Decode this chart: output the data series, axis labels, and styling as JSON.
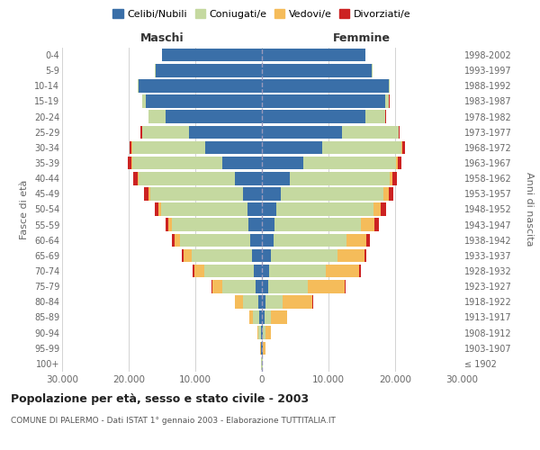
{
  "age_groups": [
    "100+",
    "95-99",
    "90-94",
    "85-89",
    "80-84",
    "75-79",
    "70-74",
    "65-69",
    "60-64",
    "55-59",
    "50-54",
    "45-49",
    "40-44",
    "35-39",
    "30-34",
    "25-29",
    "20-24",
    "15-19",
    "10-14",
    "5-9",
    "0-4"
  ],
  "birth_years": [
    "≤ 1902",
    "1903-1907",
    "1908-1912",
    "1913-1917",
    "1918-1922",
    "1923-1927",
    "1928-1932",
    "1933-1937",
    "1938-1942",
    "1943-1947",
    "1948-1952",
    "1953-1957",
    "1958-1962",
    "1963-1967",
    "1968-1972",
    "1973-1977",
    "1978-1982",
    "1983-1987",
    "1988-1992",
    "1993-1997",
    "1998-2002"
  ],
  "colors": {
    "celibi": "#3a6fa8",
    "coniugati": "#c5d9a0",
    "vedovi": "#f5bc5a",
    "divorziati": "#cc2222"
  },
  "males": {
    "celibi": [
      50,
      100,
      200,
      400,
      600,
      900,
      1200,
      1500,
      1800,
      2000,
      2200,
      2800,
      4000,
      6000,
      8500,
      11000,
      14500,
      17500,
      18500,
      16000,
      15000
    ],
    "coniugati": [
      50,
      100,
      300,
      900,
      2200,
      5000,
      7500,
      9000,
      10500,
      11500,
      13000,
      14000,
      14500,
      13500,
      11000,
      7000,
      2500,
      500,
      100,
      50,
      20
    ],
    "vedovi": [
      30,
      100,
      200,
      600,
      1200,
      1500,
      1500,
      1200,
      800,
      500,
      300,
      200,
      100,
      50,
      30,
      20,
      10,
      5,
      2,
      1,
      1
    ],
    "divorziati": [
      5,
      10,
      20,
      50,
      80,
      150,
      250,
      350,
      450,
      500,
      600,
      700,
      700,
      600,
      400,
      200,
      80,
      20,
      5,
      2,
      1
    ]
  },
  "females": {
    "celibi": [
      50,
      100,
      200,
      400,
      600,
      900,
      1100,
      1400,
      1700,
      1900,
      2200,
      2800,
      4200,
      6200,
      9000,
      12000,
      15500,
      18500,
      19000,
      16500,
      15500
    ],
    "coniugati": [
      30,
      80,
      300,
      900,
      2500,
      6000,
      8500,
      10000,
      11000,
      13000,
      14500,
      15500,
      15000,
      14000,
      12000,
      8500,
      3000,
      600,
      150,
      60,
      20
    ],
    "vedovi": [
      80,
      300,
      800,
      2500,
      4500,
      5500,
      5000,
      4000,
      3000,
      2000,
      1200,
      700,
      350,
      150,
      60,
      20,
      10,
      5,
      2,
      1,
      1
    ],
    "divorziati": [
      3,
      8,
      15,
      40,
      80,
      150,
      200,
      300,
      450,
      600,
      700,
      700,
      700,
      600,
      400,
      200,
      80,
      20,
      5,
      2,
      1
    ]
  },
  "xlim": 30000,
  "xticks": [
    -30000,
    -20000,
    -10000,
    0,
    10000,
    20000,
    30000
  ],
  "xticklabels": [
    "30.000",
    "20.000",
    "10.000",
    "0",
    "10.000",
    "20.000",
    "30.000"
  ],
  "title": "Popolazione per età, sesso e stato civile - 2003",
  "subtitle": "COMUNE DI PALERMO - Dati ISTAT 1° gennaio 2003 - Elaborazione TUTTITALIA.IT",
  "ylabel_left": "Fasce di età",
  "ylabel_right": "Anni di nascita",
  "label_maschi": "Maschi",
  "label_femmine": "Femmine",
  "legend_labels": [
    "Celibi/Nubili",
    "Coniugati/e",
    "Vedovi/e",
    "Divorziati/e"
  ],
  "bg_color": "#ffffff",
  "grid_color": "#cccccc",
  "bar_height": 0.85
}
